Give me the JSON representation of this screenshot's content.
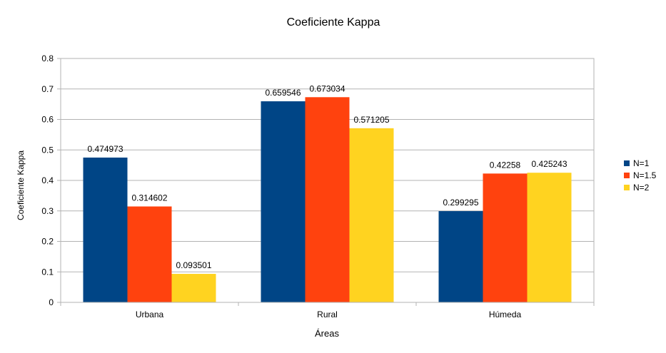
{
  "chart_data": {
    "type": "bar",
    "title": "Coeficiente Kappa",
    "xlabel": "Áreas",
    "ylabel": "Coeficiente Kappa",
    "categories": [
      "Urbana",
      "Rural",
      "Húmeda"
    ],
    "series": [
      {
        "name": "N=1",
        "values": [
          0.474973,
          0.659546,
          0.299295
        ],
        "value_labels": [
          "0.474973",
          "0.659546",
          "0.299295"
        ],
        "color": "#004586"
      },
      {
        "name": "N=1.5",
        "values": [
          0.314602,
          0.673034,
          0.42258
        ],
        "value_labels": [
          "0.314602",
          "0.673034",
          "0.42258"
        ],
        "color": "#ff420e"
      },
      {
        "name": "N=2",
        "values": [
          0.093501,
          0.571205,
          0.425243
        ],
        "value_labels": [
          "0.093501",
          "0.571205",
          "0.425243"
        ],
        "color": "#ffd320"
      }
    ],
    "ylim": [
      0,
      0.8
    ],
    "yticks": [
      "0",
      "0.1",
      "0.2",
      "0.3",
      "0.4",
      "0.5",
      "0.6",
      "0.7",
      "0.8"
    ],
    "grid": true,
    "legend": "right"
  }
}
